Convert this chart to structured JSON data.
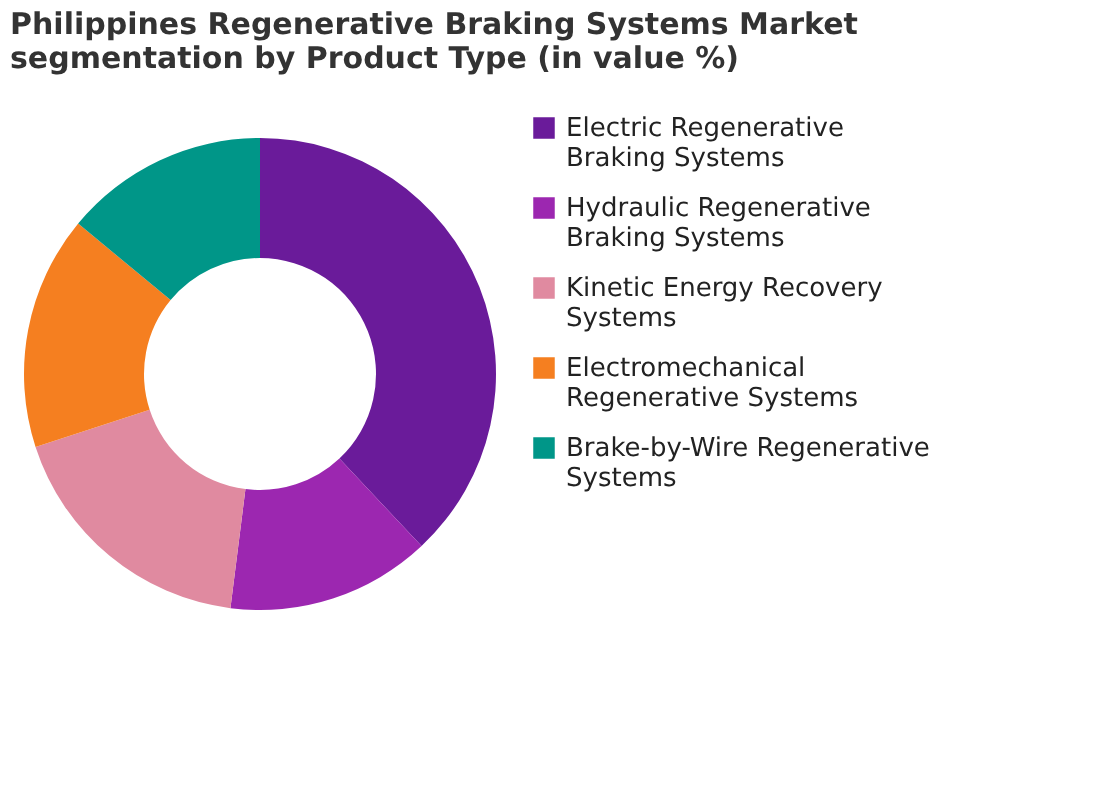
{
  "chart_data": {
    "type": "donut",
    "title": "Philippines Regenerative Braking Systems Market segmentation by Product Type (in value %)",
    "categories": [
      "Electric Regenerative Braking Systems",
      "Hydraulic Regenerative Braking Systems",
      "Kinetic Energy Recovery Systems",
      "Electromechanical Regenerative Systems",
      "Brake-by-Wire Regenerative Systems"
    ],
    "values": [
      38,
      14,
      18,
      16,
      14
    ],
    "colors": [
      "#6a1b9a",
      "#9c27b0",
      "#e08aa0",
      "#f57f20",
      "#009688"
    ],
    "legend": "right"
  }
}
